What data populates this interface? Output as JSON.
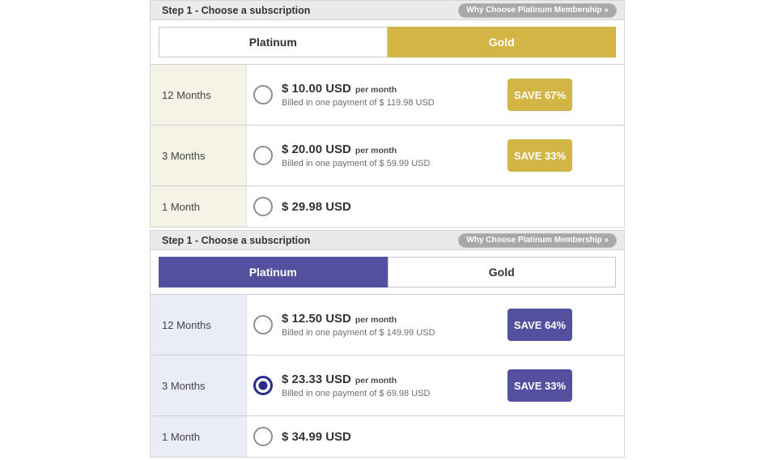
{
  "colors": {
    "gold_accent": "#d2b544",
    "platinum_accent": "#5450a0",
    "header_bg": "#eaeaea",
    "gold_row_bg": "#f5f3e6",
    "platinum_row_bg": "#eaedf8",
    "pill_bg": "#a8a8a8",
    "radio_selected": "#2b2b8f"
  },
  "panels": [
    {
      "title": "Step 1 - Choose a subscription",
      "why_badge": "Why Choose Platinum Membership »",
      "selected_tab": "Gold",
      "tabs": [
        {
          "label": "Platinum"
        },
        {
          "label": "Gold"
        }
      ],
      "rows": [
        {
          "duration": "12 Months",
          "price": "$ 10.00 USD",
          "per": "per month",
          "billed": "Billed in one payment of $ 119.98 USD",
          "save": "SAVE 67%",
          "radio_selected": false
        },
        {
          "duration": "3 Months",
          "price": "$ 20.00 USD",
          "per": "per month",
          "billed": "Billed in one payment of $ 59.99 USD",
          "save": "SAVE 33%",
          "radio_selected": false
        },
        {
          "duration": "1 Month",
          "price": "$ 29.98 USD",
          "radio_selected": false
        }
      ]
    },
    {
      "title": "Step 1 - Choose a subscription",
      "why_badge": "Why Choose Platinum Membership »",
      "selected_tab": "Platinum",
      "tabs": [
        {
          "label": "Platinum"
        },
        {
          "label": "Gold"
        }
      ],
      "rows": [
        {
          "duration": "12 Months",
          "price": "$ 12.50 USD",
          "per": "per month",
          "billed": "Billed in one payment of $ 149.99 USD",
          "save": "SAVE 64%",
          "radio_selected": false
        },
        {
          "duration": "3 Months",
          "price": "$ 23.33 USD",
          "per": "per month",
          "billed": "Billed in one payment of $ 69.98 USD",
          "save": "SAVE 33%",
          "radio_selected": true
        },
        {
          "duration": "1 Month",
          "price": "$ 34.99 USD",
          "radio_selected": false
        }
      ]
    }
  ]
}
